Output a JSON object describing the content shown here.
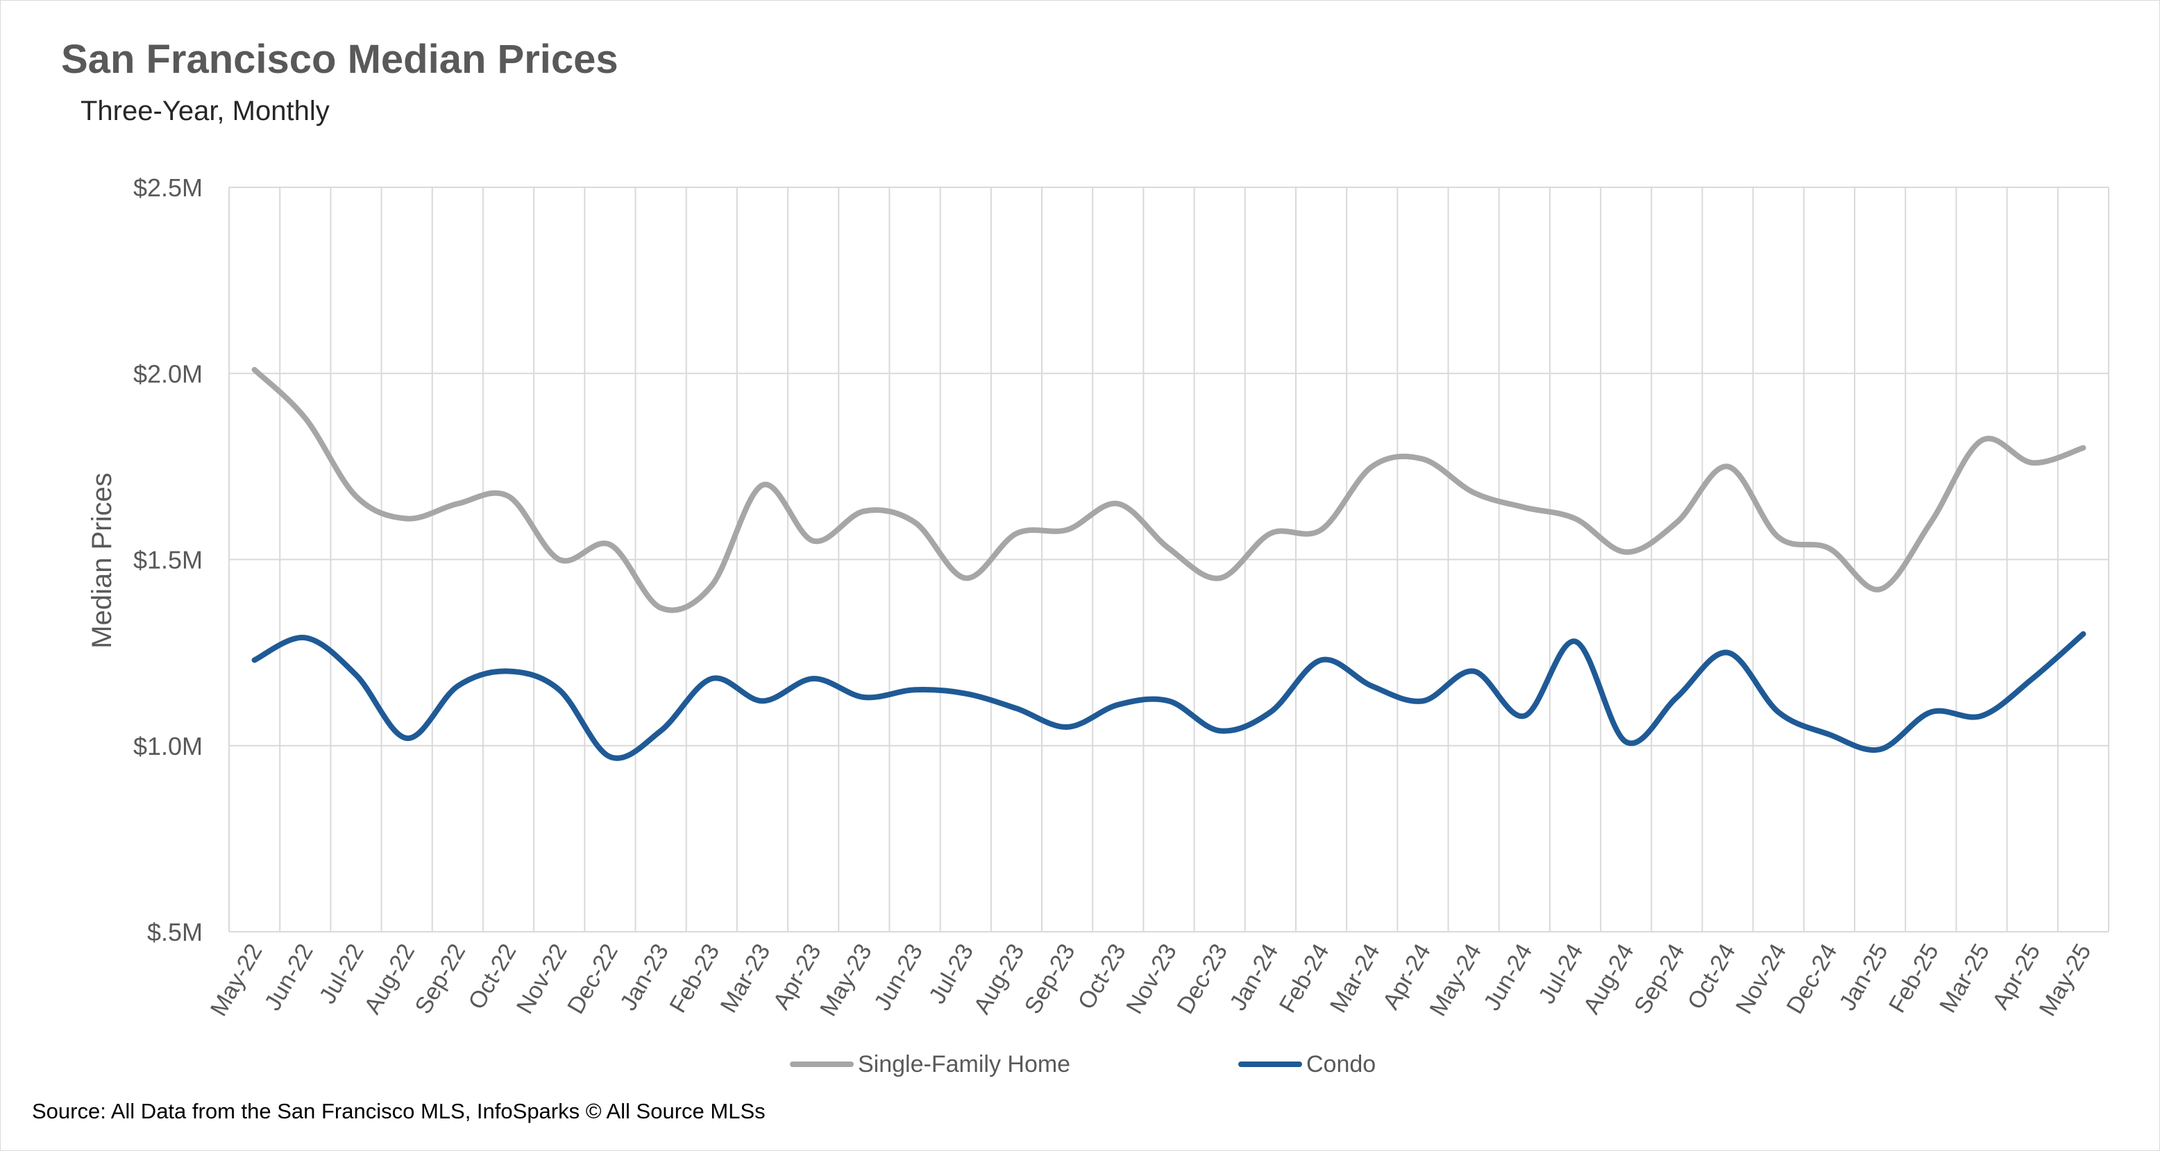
{
  "title": "San Francisco Median Prices",
  "subtitle": "Three-Year, Monthly",
  "source": "Source: All Data from the San Francisco MLS, InfoSparks © All Source MLSs",
  "chart_data": {
    "type": "line",
    "ylabel": "Median Prices",
    "xlabel": "",
    "ylim": [
      0.5,
      2.5
    ],
    "yticks": [
      2.5,
      2.0,
      1.5,
      1.0,
      0.5
    ],
    "ytick_labels": [
      "$2.5M",
      "$2.0M",
      "$1.5M",
      "$1.0M",
      "$.5M"
    ],
    "grid": true,
    "legend_position": "bottom",
    "categories": [
      "May-22",
      "Jun-22",
      "Jul-22",
      "Aug-22",
      "Sep-22",
      "Oct-22",
      "Nov-22",
      "Dec-22",
      "Jan-23",
      "Feb-23",
      "Mar-23",
      "Apr-23",
      "May-23",
      "Jun-23",
      "Jul-23",
      "Aug-23",
      "Sep-23",
      "Oct-23",
      "Nov-23",
      "Dec-23",
      "Jan-24",
      "Feb-24",
      "Mar-24",
      "Apr-24",
      "May-24",
      "Jun-24",
      "Jul-24",
      "Aug-24",
      "Sep-24",
      "Oct-24",
      "Nov-24",
      "Dec-24",
      "Jan-25",
      "Feb-25",
      "Mar-25",
      "Apr-25",
      "May-25"
    ],
    "series": [
      {
        "name": "Single-Family Home",
        "color": "#a6a6a6",
        "values": [
          2.01,
          1.88,
          1.67,
          1.61,
          1.65,
          1.67,
          1.5,
          1.54,
          1.37,
          1.43,
          1.7,
          1.55,
          1.63,
          1.6,
          1.45,
          1.57,
          1.58,
          1.65,
          1.53,
          1.45,
          1.57,
          1.58,
          1.75,
          1.77,
          1.68,
          1.64,
          1.61,
          1.52,
          1.6,
          1.75,
          1.56,
          1.53,
          1.42,
          1.6,
          1.82,
          1.76,
          1.8
        ]
      },
      {
        "name": "Condo",
        "color": "#1f5a96",
        "values": [
          1.23,
          1.29,
          1.19,
          1.02,
          1.16,
          1.2,
          1.15,
          0.97,
          1.04,
          1.18,
          1.12,
          1.18,
          1.13,
          1.15,
          1.14,
          1.1,
          1.05,
          1.11,
          1.12,
          1.04,
          1.09,
          1.23,
          1.16,
          1.12,
          1.2,
          1.08,
          1.28,
          1.01,
          1.13,
          1.25,
          1.09,
          1.03,
          0.99,
          1.09,
          1.08,
          1.18,
          1.3
        ]
      }
    ]
  }
}
